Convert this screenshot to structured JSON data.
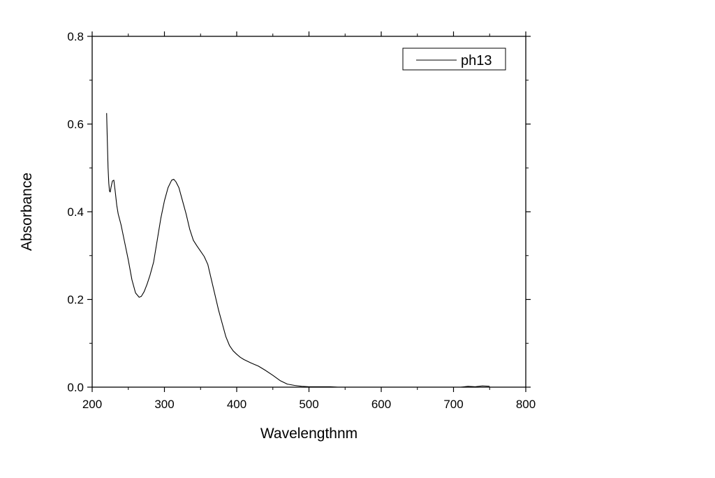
{
  "chart_data": {
    "type": "line",
    "title": "",
    "xlabel": "Wavelengthnm",
    "ylabel": "Absorbance",
    "xlim": [
      200,
      800
    ],
    "ylim": [
      0.0,
      0.8
    ],
    "x_ticks": [
      200,
      300,
      400,
      500,
      600,
      700,
      800
    ],
    "x_tick_labels": [
      "200",
      "300",
      "400",
      "500",
      "600",
      "700",
      "800"
    ],
    "y_ticks": [
      0.0,
      0.2,
      0.4,
      0.6,
      0.8
    ],
    "y_tick_labels": [
      "0.0",
      "0.2",
      "0.4",
      "0.6",
      "0.8"
    ],
    "grid": false,
    "legend_position": "top-right",
    "series": [
      {
        "name": "ph13",
        "color": "#000000",
        "x": [
          220,
          221,
          222,
          223,
          224,
          225,
          226,
          228,
          230,
          232,
          234,
          236,
          240,
          245,
          250,
          255,
          260,
          265,
          268,
          272,
          276,
          280,
          285,
          290,
          295,
          300,
          305,
          310,
          313,
          316,
          320,
          325,
          330,
          335,
          340,
          345,
          350,
          355,
          360,
          365,
          370,
          375,
          380,
          385,
          390,
          395,
          400,
          405,
          410,
          420,
          430,
          440,
          450,
          460,
          470,
          480,
          490,
          500,
          510,
          520,
          530,
          540,
          545,
          700,
          710,
          720,
          730,
          740,
          750
        ],
        "y": [
          0.625,
          0.56,
          0.5,
          0.465,
          0.447,
          0.445,
          0.455,
          0.47,
          0.472,
          0.445,
          0.415,
          0.395,
          0.37,
          0.33,
          0.29,
          0.245,
          0.215,
          0.205,
          0.207,
          0.218,
          0.235,
          0.255,
          0.285,
          0.335,
          0.385,
          0.425,
          0.455,
          0.472,
          0.474,
          0.468,
          0.455,
          0.425,
          0.395,
          0.36,
          0.335,
          0.322,
          0.31,
          0.298,
          0.28,
          0.245,
          0.21,
          0.175,
          0.145,
          0.115,
          0.095,
          0.083,
          0.075,
          0.068,
          0.063,
          0.055,
          0.048,
          0.038,
          0.027,
          0.015,
          0.007,
          0.004,
          0.002,
          0.001,
          0.001,
          0.001,
          0.001,
          0.0,
          0.0,
          0.0,
          0.0,
          0.002,
          0.001,
          0.003,
          0.002
        ]
      }
    ]
  }
}
